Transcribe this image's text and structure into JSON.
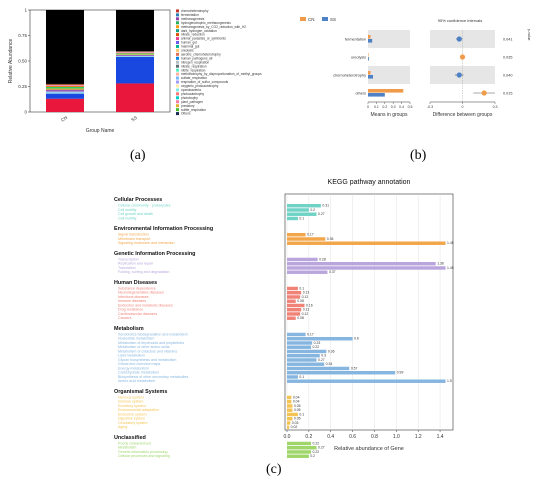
{
  "captions": {
    "a": "(a)",
    "b": "(b)",
    "c": "(c)"
  },
  "panel_a": {
    "chart_data": {
      "type": "bar",
      "stacked": true,
      "categories": [
        "CN",
        "SS"
      ],
      "xlabel": "Group Name",
      "ylabel": "Relative Abundance",
      "ylim": [
        0,
        1
      ],
      "yticks": [
        "0",
        "0.25",
        "0.50",
        "0.75",
        "1"
      ],
      "series": [
        {
          "name": "Others",
          "color": "#e8173b",
          "values": [
            0.13,
            0.28
          ]
        },
        {
          "name": "chemoheterotrophy",
          "color": "#1848e0",
          "values": [
            0.05,
            0.26
          ]
        },
        {
          "name": "fermentation",
          "color": "#8fd3f0",
          "values": [
            0.02,
            0.01
          ]
        },
        {
          "name": "methanogenesis",
          "color": "#9b59b6",
          "values": [
            0.02,
            0.01
          ]
        },
        {
          "name": "hydrogenotrophic_methanogenesis",
          "color": "#f1c40f",
          "values": [
            0.01,
            0.005
          ]
        },
        {
          "name": "aerobic_chemoheterotrophy",
          "color": "#2ecc71",
          "values": [
            0.015,
            0.01
          ]
        },
        {
          "name": "nitrate_reduction",
          "color": "#e67e22",
          "values": [
            0.01,
            0.005
          ]
        },
        {
          "name": "animal_parasites_or_symbionts",
          "color": "#f48fb1",
          "values": [
            0.01,
            0.01
          ]
        },
        {
          "name": "human_gut",
          "color": "#a0522d",
          "values": [
            0.01,
            0.005
          ]
        },
        {
          "name": "Unknown",
          "color": "#000000",
          "values": [
            0.725,
            0.405
          ]
        }
      ],
      "legend": [
        {
          "label": "chemoheterotrophy",
          "color": "#c0392b"
        },
        {
          "label": "fermentation",
          "color": "#2980b9"
        },
        {
          "label": "methanogenesis",
          "color": "#8e44ad"
        },
        {
          "label": "hydrogenotrophic_methanogenesis",
          "color": "#27ae60"
        },
        {
          "label": "methanogenesis_by_CO2_reduction_with_H2",
          "color": "#f39c12"
        },
        {
          "label": "dark_hydrogen_oxidation",
          "color": "#16a085"
        },
        {
          "label": "nitrate_reduction",
          "color": "#d35400"
        },
        {
          "label": "animal_parasites_or_symbionts",
          "color": "#e84393"
        },
        {
          "label": "human_gut",
          "color": "#6c5ce7"
        },
        {
          "label": "mammal_gut",
          "color": "#00b894"
        },
        {
          "label": "ureolysis",
          "color": "#fdcb6e"
        },
        {
          "label": "aerobic_chemoheterotrophy",
          "color": "#e17055"
        },
        {
          "label": "human_pathogens_all",
          "color": "#0984e3"
        },
        {
          "label": "nitrogen_respiration",
          "color": "#b2bec3"
        },
        {
          "label": "nitrate_respiration",
          "color": "#636e72"
        },
        {
          "label": "nitrite_respiration",
          "color": "#55efc4"
        },
        {
          "label": "methanotrophy_by_disproportionation_of_methyl_groups",
          "color": "#fab1a0"
        },
        {
          "label": "sulfate_respiration",
          "color": "#74b9ff"
        },
        {
          "label": "respiration_of_sulfur_compounds",
          "color": "#a29bfe"
        },
        {
          "label": "oxygenic_photoautotrophy",
          "color": "#ffeaa7"
        },
        {
          "label": "cyanobacteria",
          "color": "#81ecec"
        },
        {
          "label": "photoautotrophy",
          "color": "#ff7675"
        },
        {
          "label": "phototrophy",
          "color": "#00cec9"
        },
        {
          "label": "plant_pathogen",
          "color": "#fd79a8"
        },
        {
          "label": "predatory",
          "color": "#e1b12c"
        },
        {
          "label": "sulfite_respiration",
          "color": "#44bd32"
        },
        {
          "label": "Others",
          "color": "#192a56"
        }
      ]
    }
  },
  "panel_b": {
    "legend": [
      {
        "label": "CN",
        "color": "#ef9b4a"
      },
      {
        "label": "SS",
        "color": "#4f81c7"
      }
    ],
    "ci_title": "95% confidence intervals",
    "xlabel_left": "Means in groups",
    "xlabel_right": "Difference between groups",
    "rows": [
      "fermentation",
      "ureolysis",
      "chemoheterotrophy",
      "others"
    ],
    "chart_data": {
      "type": "bar",
      "orientation": "horizontal",
      "categories": [
        "fermentation",
        "ureolysis",
        "chemoheterotrophy",
        "others"
      ],
      "xlabel": "Means in groups",
      "xlim": [
        0,
        0.5
      ],
      "xticks": [
        "0",
        "0.1",
        "0.2",
        "0.3",
        "0.4",
        "0.5"
      ],
      "series": [
        {
          "name": "CN",
          "values": [
            0.03,
            0.0,
            0.03,
            0.42
          ]
        },
        {
          "name": "SS",
          "values": [
            0.05,
            0.01,
            0.06,
            0.2
          ]
        }
      ]
    },
    "diff_data": {
      "type": "scatter",
      "xlim": [
        -0.3,
        0.3
      ],
      "xticks": [
        "-0.3",
        "0",
        "0.3"
      ],
      "points": [
        {
          "category": "fermentation",
          "value": -0.03,
          "low": -0.06,
          "high": 0.0,
          "color": "#4f81c7"
        },
        {
          "category": "ureolysis",
          "value": 0.0,
          "low": -0.01,
          "high": 0.01,
          "color": "#ef9b4a"
        },
        {
          "category": "chemoheterotrophy",
          "value": -0.03,
          "low": -0.07,
          "high": 0.01,
          "color": "#4f81c7"
        },
        {
          "category": "others",
          "value": 0.2,
          "low": 0.1,
          "high": 0.3,
          "color": "#ef9b4a"
        }
      ],
      "pvalues": [
        "0.041",
        "0.035",
        "0.040",
        "0.015"
      ],
      "pvalue_label": "p-value"
    }
  },
  "panel_c": {
    "title": "KEGG pathway annotation",
    "xlabel": "Relative abundance of Gene",
    "xlim": [
      0,
      1.4
    ],
    "xticks": [
      "0.0",
      "0.2",
      "0.4",
      "0.6",
      "0.8",
      "1.0",
      "1.2",
      "1.4"
    ],
    "chart_data": {
      "type": "bar",
      "orientation": "horizontal",
      "groups": [
        {
          "name": "Cellular Processes",
          "color": "#6fd3c6",
          "items": [
            {
              "label": "Cellular community - prokaryotes",
              "value": 0.31
            },
            {
              "label": "Cell motility",
              "value": 0.2
            },
            {
              "label": "Cell growth and death",
              "value": 0.27
            },
            {
              "label": "Cell motility",
              "value": 0.1
            }
          ]
        },
        {
          "name": "Environmental Information Processing",
          "color": "#f2a64a",
          "items": [
            {
              "label": "Signal transduction",
              "value": 0.17
            },
            {
              "label": "Membrane transport",
              "value": 0.35
            },
            {
              "label": "Signaling molecules and interaction",
              "value": 1.45
            }
          ]
        },
        {
          "name": "Genetic Information Processing",
          "color": "#b9a6dc",
          "items": [
            {
              "label": "Transcription",
              "value": 0.28
            },
            {
              "label": "Replication and repair",
              "value": 1.36
            },
            {
              "label": "Translation",
              "value": 1.45
            },
            {
              "label": "Folding, sorting and degradation",
              "value": 0.37
            }
          ]
        },
        {
          "name": "Human Diseases",
          "color": "#f08278",
          "items": [
            {
              "label": "Substance dependence",
              "value": 0.1
            },
            {
              "label": "Neurodegenerative diseases",
              "value": 0.13
            },
            {
              "label": "Infectious diseases",
              "value": 0.12
            },
            {
              "label": "Immune diseases",
              "value": 0.08
            },
            {
              "label": "Endocrine and metabolic diseases",
              "value": 0.16
            },
            {
              "label": "Drug resistance",
              "value": 0.13
            },
            {
              "label": "Cardiovascular diseases",
              "value": 0.12
            },
            {
              "label": "Cancers",
              "value": 0.08
            }
          ]
        },
        {
          "name": "Metabolism",
          "color": "#86b6df",
          "items": [
            {
              "label": "Xenobiotics biodegradation and metabolism",
              "value": 0.17
            },
            {
              "label": "Nucleotide metabolism",
              "value": 0.6
            },
            {
              "label": "Metabolism of terpenoids and polyketides",
              "value": 0.23
            },
            {
              "label": "Metabolism of other amino acids",
              "value": 0.22
            },
            {
              "label": "Metabolism of cofactors and vitamins",
              "value": 0.36
            },
            {
              "label": "Lipid metabolism",
              "value": 0.3
            },
            {
              "label": "Glycan biosynthesis and metabolism",
              "value": 0.27
            },
            {
              "label": "Global and overview maps",
              "value": 0.34
            },
            {
              "label": "Energy metabolism",
              "value": 0.57
            },
            {
              "label": "Carbohydrate metabolism",
              "value": 0.99
            },
            {
              "label": "Biosynthesis of other secondary metabolites",
              "value": 0.1
            },
            {
              "label": "Amino acid metabolism",
              "value": 1.5
            }
          ]
        },
        {
          "name": "Organismal Systems",
          "color": "#f4c453",
          "items": [
            {
              "label": "Nervous system",
              "value": 0.04
            },
            {
              "label": "Immune system",
              "value": 0.04
            },
            {
              "label": "Excretory system",
              "value": 0.05
            },
            {
              "label": "Environmental adaptation",
              "value": 0.05
            },
            {
              "label": "Endocrine system",
              "value": 0.1
            },
            {
              "label": "Digestive system",
              "value": 0.05
            },
            {
              "label": "Circulatory system",
              "value": 0.03
            },
            {
              "label": "Aging",
              "value": 0.02
            }
          ]
        },
        {
          "name": "Unclassified",
          "color": "#9ed66a",
          "items": [
            {
              "label": "Poorly characterized",
              "value": 0.22
            },
            {
              "label": "Metabolism",
              "value": 0.27
            },
            {
              "label": "Genetic information processing",
              "value": 0.22
            },
            {
              "label": "Cellular processes and signaling",
              "value": 0.2
            }
          ]
        }
      ]
    }
  }
}
